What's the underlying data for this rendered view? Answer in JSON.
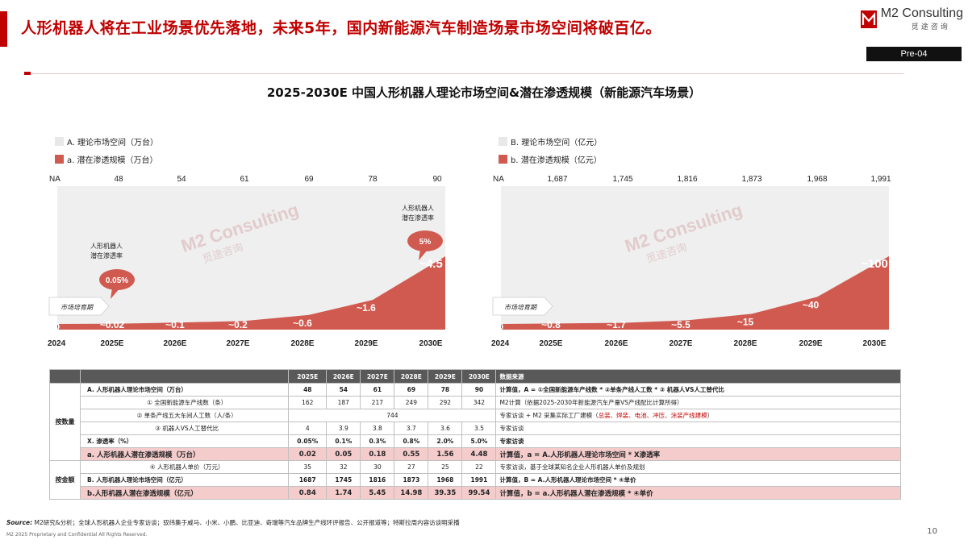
{
  "header": {
    "headline": "人形机器人将在工业场景优先落地，未来5年，国内新能源汽车制造场景市场空间将破百亿。",
    "logo_name": "M2 Consulting",
    "logo_cn": "觅途咨询",
    "page_tag": "Pre-04"
  },
  "title": "2025-2030E 中国人形机器人理论市场空间&潜在渗透规模（新能源汽车场景）",
  "colors": {
    "accent": "#c00000",
    "bar": "#d05a50",
    "area_bg": "#efefef"
  },
  "chart_data": [
    {
      "type": "area",
      "legend": [
        "A. 理论市场空间（万台）",
        "a. 潜在渗透规模（万台）"
      ],
      "legend_placement": "top-left",
      "categories": [
        "2024",
        "2025E",
        "2026E",
        "2027E",
        "2028E",
        "2029E",
        "2030E"
      ],
      "top_values": [
        "NA",
        "48",
        "54",
        "61",
        "69",
        "78",
        "90"
      ],
      "series": [
        {
          "name": "a. 潜在渗透规模（万台）",
          "values": [
            0,
            0.02,
            0.1,
            0.2,
            0.6,
            1.6,
            4.5
          ]
        }
      ],
      "data_labels": [
        "0",
        "~0.02",
        "~0.1",
        "~0.2",
        "~0.6",
        "~1.6",
        "~4.5"
      ],
      "stage_label": "市场培育期",
      "callouts": [
        {
          "text_line1": "人形机器人",
          "text_line2": "潜在渗透率",
          "value": "0.05%"
        },
        {
          "text_line1": "人形机器人",
          "text_line2": "潜在渗透率",
          "value": "5%"
        }
      ],
      "watermark": "M2 Consulting",
      "watermark_cn": "觅途咨询"
    },
    {
      "type": "area",
      "legend": [
        "B. 理论市场空间（亿元）",
        "b. 潜在渗透规模（亿元）"
      ],
      "legend_placement": "top-left",
      "categories": [
        "2024",
        "2025E",
        "2026E",
        "2027E",
        "2028E",
        "2029E",
        "2030E"
      ],
      "top_values": [
        "NA",
        "1,687",
        "1,745",
        "1,816",
        "1,873",
        "1,968",
        "1,991"
      ],
      "series": [
        {
          "name": "b. 潜在渗透规模（亿元）",
          "values": [
            0,
            0.8,
            1.7,
            5.5,
            15,
            40,
            100
          ]
        }
      ],
      "data_labels": [
        "0",
        "~0.8",
        "~1.7",
        "~5.5",
        "~15",
        "~40",
        "~100"
      ],
      "stage_label": "市场培育期",
      "watermark": "M2 Consulting",
      "watermark_cn": "觅途咨询"
    }
  ],
  "table": {
    "years": [
      "2025E",
      "2026E",
      "2027E",
      "2028E",
      "2029E",
      "2030E"
    ],
    "source_header": "数据来源",
    "groups": {
      "quantity": "按数量",
      "amount": "按金额"
    },
    "rows": [
      {
        "label": "A. 人形机器人理论市场空间（万台）",
        "values": [
          "48",
          "54",
          "61",
          "69",
          "78",
          "90"
        ],
        "source": "计算值，A = ①全国新能源车产线数 * ②单条产线人工数 * ③ 机器人VS人工替代比"
      },
      {
        "label": "① 全国新能源车产线数（条）",
        "values": [
          "162",
          "187",
          "217",
          "249",
          "292",
          "342"
        ],
        "source": "M2计算（依据2025-2030年新能源汽车产量VS产线配比计算所得）"
      },
      {
        "label": "② 单条产线五大车间人工数（人/条）",
        "merged": "744",
        "source_prefix": "专家访谈 + M2 采集实际工厂建模（",
        "source_red": "总装、焊装、电池、冲压、涂装产线建模",
        "source_suffix": "）"
      },
      {
        "label": "③ 机器人VS人工替代比",
        "values": [
          "4",
          "3.9",
          "3.8",
          "3.7",
          "3.6",
          "3.5"
        ],
        "source": "专家访谈"
      },
      {
        "label": "X. 渗透率（%）",
        "values": [
          "0.05%",
          "0.1%",
          "0.3%",
          "0.8%",
          "2.0%",
          "5.0%"
        ],
        "source": "专家访谈"
      },
      {
        "label": "a. 人形机器人潜在渗透规模（万台）",
        "values": [
          "0.02",
          "0.05",
          "0.18",
          "0.55",
          "1.56",
          "4.48"
        ],
        "source": "计算值，a = A.人形机器人理论市场空间 * X渗透率"
      },
      {
        "label": "④ 人形机器人单价（万元）",
        "values": [
          "35",
          "32",
          "30",
          "27",
          "25",
          "22"
        ],
        "source": "专家访谈，基于全球某知名企业人形机器人单价及规划"
      },
      {
        "label": "B. 人形机器人理论市场空间（亿元）",
        "values": [
          "1687",
          "1745",
          "1816",
          "1873",
          "1968",
          "1991"
        ],
        "source": "计算值，B = A.人形机器人理论市场空间 * ④单价"
      },
      {
        "label": "b.人形机器人潜在渗透规模（亿元）",
        "values": [
          "0.84",
          "1.74",
          "5.45",
          "14.98",
          "39.35",
          "99.54"
        ],
        "source": "计算值，b = a.人形机器人潜在渗透规模 * ④单价"
      }
    ]
  },
  "footer": {
    "source_label": "Source:",
    "source_text": "M2研究&分析；全球人形机器人企业专家访谈；驭纬集于威马、小米、小鹏、比亚迪、奇瑞等汽车品牌生产线环评报告、公开报道等；特斯拉周内容访谈明采播",
    "copyright": "M2 2025 Proprietary and Confidential All Rights Reserved.",
    "page_number": "10"
  }
}
